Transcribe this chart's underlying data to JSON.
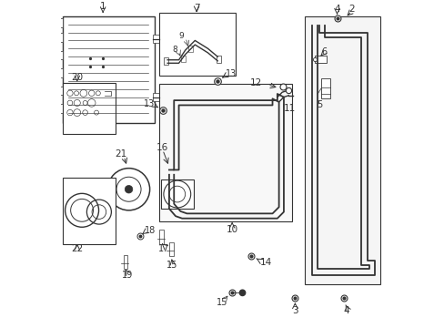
{
  "bg_color": "#ffffff",
  "line_color": "#333333",
  "box_fill_light": "#f5f5f5",
  "box_fill_white": "#ffffff"
}
